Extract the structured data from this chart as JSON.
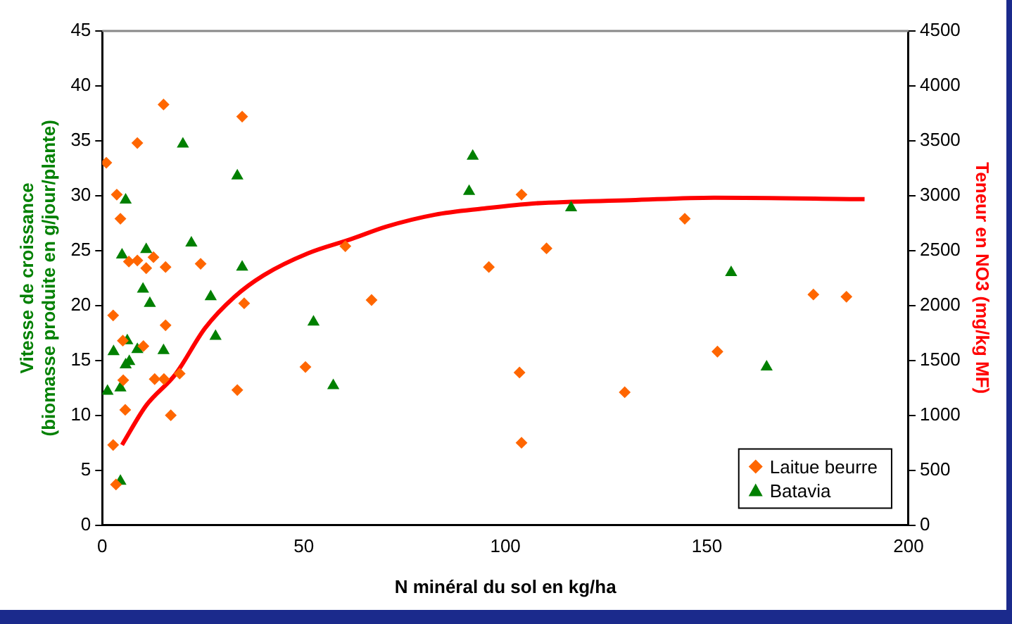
{
  "chart_data": {
    "type": "scatter",
    "xlabel": "N minéral du sol en kg/ha",
    "ylabel": "Vitesse de croissance (biomasse produite en g/jour/plante)",
    "y2label": "Teneur en NO3 (mg/kg MF)",
    "xlim": [
      0,
      200
    ],
    "xticks": [
      0,
      50,
      100,
      150,
      200
    ],
    "ylim": [
      0,
      45
    ],
    "yticks": [
      0,
      5,
      10,
      15,
      20,
      25,
      30,
      35,
      40,
      45
    ],
    "y2lim": [
      0,
      4500
    ],
    "y2ticks": [
      0,
      500,
      1000,
      1500,
      2000,
      2500,
      3000,
      3500,
      4000,
      4500
    ],
    "grid": false,
    "legend": "bottom right",
    "series": [
      {
        "name": "Laitue beurre",
        "color": "#ff6600",
        "marker": "diamond",
        "x": [
          1.0,
          15.2,
          34.7,
          8.7,
          3.6,
          4.5,
          6.6,
          8.7,
          12.7,
          10.9,
          15.7,
          24.4,
          2.7,
          35.2,
          15.7,
          5.1,
          10.2,
          5.2,
          13.0,
          15.3,
          19.2,
          50.4,
          33.5,
          5.7,
          17.0,
          2.7,
          3.4,
          60.3,
          104.0,
          110.2,
          95.9,
          66.8,
          103.5,
          104.0,
          129.6,
          144.5,
          176.4,
          184.6,
          152.6
        ],
        "values": [
          33.0,
          38.3,
          37.2,
          34.8,
          30.1,
          27.9,
          24.0,
          24.1,
          24.4,
          23.4,
          23.5,
          23.8,
          19.1,
          20.2,
          18.2,
          16.8,
          16.3,
          13.2,
          13.3,
          13.3,
          13.8,
          14.4,
          12.3,
          10.5,
          10.0,
          7.3,
          3.7,
          25.4,
          30.1,
          25.2,
          23.5,
          20.5,
          13.9,
          7.5,
          12.1,
          27.9,
          21.0,
          20.8,
          15.8
        ]
      },
      {
        "name": "Batavia",
        "color": "#008000",
        "marker": "triangle",
        "x": [
          20.0,
          33.5,
          5.8,
          22.1,
          4.9,
          10.9,
          34.7,
          10.1,
          11.8,
          26.9,
          52.4,
          28.1,
          6.2,
          2.8,
          8.7,
          15.2,
          6.7,
          5.8,
          1.3,
          4.5,
          57.3,
          4.5,
          91.9,
          91.0,
          116.3,
          156.0,
          164.8
        ],
        "values": [
          34.7,
          31.8,
          29.6,
          25.7,
          24.6,
          25.1,
          23.5,
          21.5,
          20.2,
          20.8,
          18.5,
          17.2,
          16.8,
          15.8,
          16.0,
          15.9,
          14.9,
          14.6,
          12.2,
          12.5,
          12.7,
          4.0,
          33.6,
          30.4,
          28.9,
          23.0,
          14.4
        ]
      },
      {
        "type": "line",
        "axis": "y2",
        "color": "#ff0000",
        "marker": "none",
        "line_style": "solid",
        "x": [
          4.9,
          10.9,
          18.2,
          25.5,
          32.8,
          40.1,
          51,
          61.9,
          70.4,
          82.5,
          94.7,
          106.8,
          131.1,
          151.7,
          189.1
        ],
        "values": [
          730,
          1090,
          1376,
          1794,
          2079,
          2277,
          2475,
          2607,
          2718,
          2827,
          2884,
          2929,
          2959,
          2982,
          2968
        ]
      }
    ]
  }
}
